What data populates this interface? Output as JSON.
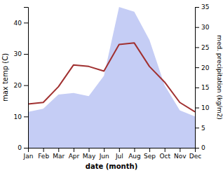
{
  "chart_data": {
    "type": "line",
    "x_label": "date (month)",
    "y_label": "max temp (C)",
    "y2_label": "med. precipitation (kg/m2)",
    "categories": [
      "Jan",
      "Feb",
      "Mar",
      "Apr",
      "May",
      "Jun",
      "Jul",
      "Aug",
      "Sep",
      "Oct",
      "Nov",
      "Dec"
    ],
    "series": [
      {
        "type": "area",
        "color": "#c5cdf5",
        "values": [
          11.5,
          12.5,
          17.0,
          17.5,
          16.5,
          23.0,
          45.0,
          43.5,
          34.5,
          20.0,
          12.0,
          10.0
        ]
      },
      {
        "type": "line",
        "color": "#a03030",
        "values": [
          14.0,
          14.5,
          19.5,
          26.5,
          26.0,
          24.5,
          33.0,
          33.5,
          26.0,
          21.0,
          14.5,
          11.5
        ]
      }
    ],
    "ylim": [
      0,
      45
    ],
    "yticks": [
      0,
      10,
      20,
      30,
      40
    ],
    "y2lim": [
      0,
      35
    ],
    "y2ticks": [
      0,
      5,
      10,
      15,
      20,
      25,
      30,
      35
    ]
  }
}
